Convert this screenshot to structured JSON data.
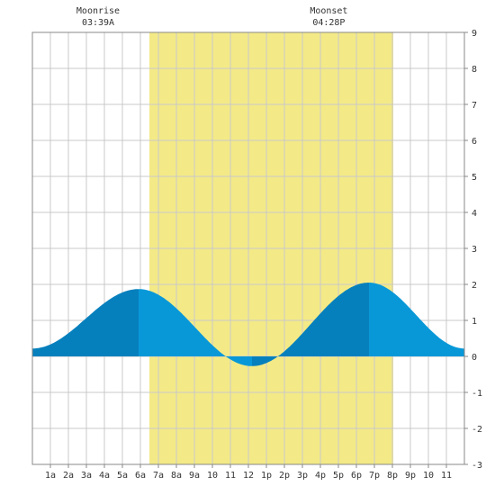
{
  "chart_data": {
    "type": "area",
    "title": "",
    "xlabel": "",
    "ylabel": "",
    "xlim": [
      0,
      24
    ],
    "ylim": [
      -3,
      9
    ],
    "grid": true,
    "x_tick_labels": [
      "1a",
      "2a",
      "3a",
      "4a",
      "5a",
      "6a",
      "7a",
      "8a",
      "9a",
      "10",
      "11",
      "12",
      "1p",
      "2p",
      "3p",
      "4p",
      "5p",
      "6p",
      "7p",
      "8p",
      "9p",
      "10",
      "11"
    ],
    "y_ticks": [
      -3,
      -2,
      -1,
      0,
      1,
      2,
      3,
      4,
      5,
      6,
      7,
      8,
      9
    ],
    "daylight": {
      "start_hour": 6.5,
      "end_hour": 20.05
    },
    "moon_events": [
      {
        "label": "Moonrise",
        "time": "03:39A",
        "hour": 3.65
      },
      {
        "label": "Moonset",
        "time": "04:28P",
        "hour": 16.47
      }
    ],
    "tide_extremes": [
      {
        "hour": 0.0,
        "value": 0.22,
        "type": "low"
      },
      {
        "hour": 5.9,
        "value": 1.87,
        "type": "high"
      },
      {
        "hour": 12.2,
        "value": -0.27,
        "type": "low"
      },
      {
        "hour": 18.7,
        "value": 2.05,
        "type": "high"
      },
      {
        "hour": 24.0,
        "value": 0.22,
        "type": "low"
      }
    ],
    "colors": {
      "daylight": "#f3ea87",
      "tide": "#0898d8",
      "tide_dark": "#0680bd",
      "grid": "#c8c8c8",
      "border": "#888888"
    }
  }
}
